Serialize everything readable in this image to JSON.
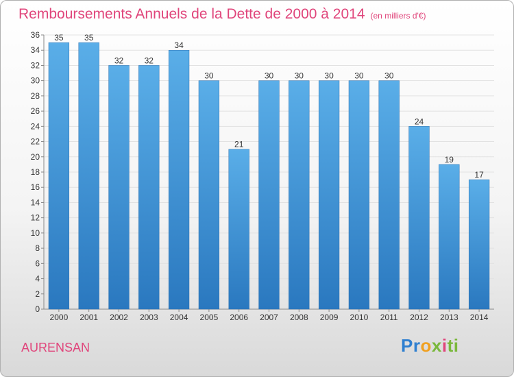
{
  "chart_data": {
    "type": "bar",
    "title": "Remboursements Annuels de la Dette de 2000 à 2014",
    "unit_note": "(en milliers d'€)",
    "categories": [
      "2000",
      "2001",
      "2002",
      "2003",
      "2004",
      "2005",
      "2006",
      "2007",
      "2008",
      "2009",
      "2010",
      "2011",
      "2012",
      "2013",
      "2014"
    ],
    "values": [
      35,
      35,
      32,
      32,
      34,
      30,
      21,
      30,
      30,
      30,
      30,
      30,
      24,
      19,
      17
    ],
    "ylim": [
      0,
      36
    ],
    "yticks": [
      0,
      2,
      4,
      6,
      8,
      10,
      12,
      14,
      16,
      18,
      20,
      22,
      24,
      26,
      28,
      30,
      32,
      34,
      36
    ],
    "grid": true,
    "bar_color_top": "#5aaee8",
    "bar_color_bottom": "#2a78bf"
  },
  "footer": {
    "place_name": "AURENSAN",
    "logo_parts": [
      "Pr",
      "o",
      "x",
      "i",
      "ti"
    ]
  }
}
